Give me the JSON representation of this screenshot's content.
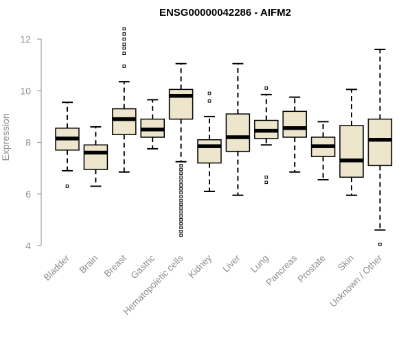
{
  "chart_data": {
    "type": "box",
    "title": "ENSG00000042286 - AIFM2",
    "ylabel": "Expression",
    "xlabel": "",
    "ylim": [
      4,
      12
    ],
    "yticks": [
      4,
      6,
      8,
      10,
      12
    ],
    "grid": false,
    "colors": {
      "box_fill": "#ede6cc",
      "box_stroke": "#000000",
      "axis": "#8c8c8c"
    },
    "categories": [
      "Bladder",
      "Brain",
      "Breast",
      "Gastric",
      "Hematopoietic cells",
      "Kidney",
      "Liver",
      "Lung",
      "Pancreas",
      "Prostate",
      "Skin",
      "Unknown / Other"
    ],
    "boxes": [
      {
        "label": "Bladder",
        "whisker_low": 6.9,
        "q1": 7.7,
        "median": 8.15,
        "q3": 8.55,
        "whisker_high": 9.55,
        "outliers": [
          6.3
        ]
      },
      {
        "label": "Brain",
        "whisker_low": 6.3,
        "q1": 6.95,
        "median": 7.6,
        "q3": 7.9,
        "whisker_high": 8.6,
        "outliers": []
      },
      {
        "label": "Breast",
        "whisker_low": 6.85,
        "q1": 8.3,
        "median": 8.9,
        "q3": 9.3,
        "whisker_high": 10.35,
        "outliers": [
          10.95,
          11.45,
          11.65,
          11.8,
          12.0,
          12.2,
          12.4
        ]
      },
      {
        "label": "Gastric",
        "whisker_low": 7.75,
        "q1": 8.2,
        "median": 8.5,
        "q3": 8.9,
        "whisker_high": 9.65,
        "outliers": []
      },
      {
        "label": "Hematopoietic cells",
        "whisker_low": 7.25,
        "q1": 8.9,
        "median": 9.8,
        "q3": 10.05,
        "whisker_high": 11.05,
        "outliers": [
          7.1,
          6.95,
          6.8,
          6.65,
          6.5,
          6.35,
          6.2,
          6.05,
          5.9,
          5.75,
          5.6,
          5.45,
          5.3,
          5.15,
          5.0,
          4.85,
          4.7,
          4.55,
          4.4
        ]
      },
      {
        "label": "Kidney",
        "whisker_low": 6.1,
        "q1": 7.2,
        "median": 7.85,
        "q3": 8.1,
        "whisker_high": 9.0,
        "outliers": [
          9.6,
          9.9
        ]
      },
      {
        "label": "Liver",
        "whisker_low": 5.95,
        "q1": 7.65,
        "median": 8.2,
        "q3": 9.1,
        "whisker_high": 11.05,
        "outliers": []
      },
      {
        "label": "Lung",
        "whisker_low": 7.9,
        "q1": 8.15,
        "median": 8.45,
        "q3": 8.85,
        "whisker_high": 9.85,
        "outliers": [
          10.1,
          6.65,
          6.45
        ]
      },
      {
        "label": "Pancreas",
        "whisker_low": 6.85,
        "q1": 8.2,
        "median": 8.55,
        "q3": 9.2,
        "whisker_high": 9.75,
        "outliers": []
      },
      {
        "label": "Prostate",
        "whisker_low": 6.55,
        "q1": 7.45,
        "median": 7.85,
        "q3": 8.2,
        "whisker_high": 8.8,
        "outliers": []
      },
      {
        "label": "Skin",
        "whisker_low": 5.95,
        "q1": 6.65,
        "median": 7.3,
        "q3": 8.65,
        "whisker_high": 10.05,
        "outliers": []
      },
      {
        "label": "Unknown / Other",
        "whisker_low": 4.6,
        "q1": 7.1,
        "median": 8.1,
        "q3": 8.9,
        "whisker_high": 11.6,
        "outliers": [
          4.05
        ]
      }
    ]
  }
}
